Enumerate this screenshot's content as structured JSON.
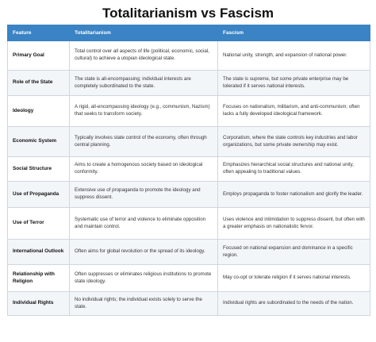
{
  "title": "Totalitarianism vs Fascism",
  "columns": [
    "Feature",
    "Totalitarianism",
    "Fascism"
  ],
  "rows": [
    {
      "feature": "Primary Goal",
      "totalitarianism": "Total control over all aspects of life (political, economic, social, cultural) to achieve a utopian ideological state.",
      "fascism": "National unity, strength, and expansion of national power."
    },
    {
      "feature": "Role of the State",
      "totalitarianism": "The state is all-encompassing; individual interests are completely subordinated to the state.",
      "fascism": "The state is supreme, but some private enterprise may be tolerated if it serves national interests."
    },
    {
      "feature": "Ideology",
      "totalitarianism": "A rigid, all-encompassing ideology (e.g., communism, Nazism) that seeks to transform society.",
      "fascism": "Focuses on nationalism, militarism, and anti-communism; often lacks a fully developed ideological framework."
    },
    {
      "feature": "Economic System",
      "totalitarianism": "Typically involves state control of the economy, often through central planning.",
      "fascism": "Corporatism, where the state controls key industries and labor organizations, but some private ownership may exist."
    },
    {
      "feature": "Social Structure",
      "totalitarianism": "Aims to create a homogenous society based on ideological conformity.",
      "fascism": "Emphasizes hierarchical social structures and national unity, often appealing to traditional values."
    },
    {
      "feature": "Use of Propaganda",
      "totalitarianism": "Extensive use of propaganda to promote the ideology and suppress dissent.",
      "fascism": "Employs propaganda to foster nationalism and glorify the leader."
    },
    {
      "feature": "Use of Terror",
      "totalitarianism": "Systematic use of terror and violence to eliminate opposition and maintain control.",
      "fascism": "Uses violence and intimidation to suppress dissent, but often with a greater emphasis on nationalistic fervor."
    },
    {
      "feature": "International Outlook",
      "totalitarianism": "Often aims for global revolution or the spread of its ideology.",
      "fascism": "Focused on national expansion and dominance in a specific region."
    },
    {
      "feature": "Relationship with Religion",
      "totalitarianism": "Often suppresses or eliminates religious institutions to promote state ideology.",
      "fascism": "May co-opt or tolerate religion if it serves national interests."
    },
    {
      "feature": "Individual Rights",
      "totalitarianism": "No individual rights; the individual exists solely to serve the state.",
      "fascism": "Individual rights are subordinated to the needs of the nation."
    }
  ]
}
